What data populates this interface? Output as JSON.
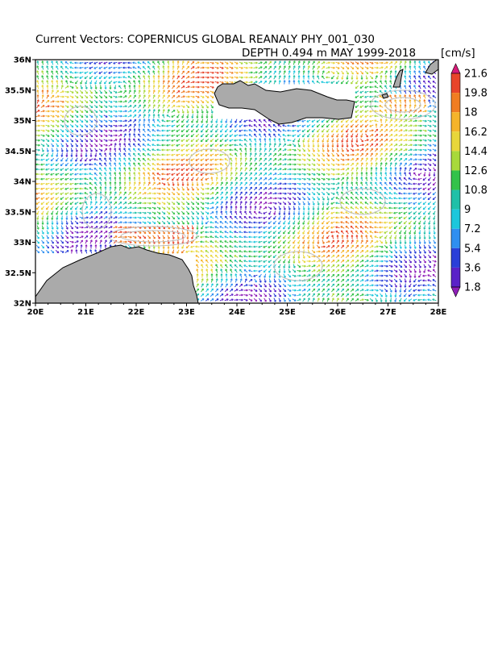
{
  "figure": {
    "title": "Current Vectors: COPERNICUS GLOBAL REANALY PHY_001_030",
    "subtitle": "DEPTH 0.494 m   MAY 1999-2018",
    "units": "[cm/s]"
  },
  "axes": {
    "x_ticks": [
      "20E",
      "21E",
      "22E",
      "23E",
      "24E",
      "25E",
      "26E",
      "27E",
      "28E"
    ],
    "y_ticks": [
      "36N",
      "35.5N",
      "35N",
      "34.5N",
      "34N",
      "33.5N",
      "33N",
      "32.5N",
      "32N"
    ]
  },
  "colorbar": {
    "labels": [
      "21.6",
      "19.8",
      "18",
      "16.2",
      "14.4",
      "12.6",
      "10.8",
      "9",
      "7.2",
      "5.4",
      "3.6",
      "1.8"
    ],
    "colors": [
      "#d81b78",
      "#e8452a",
      "#f07d22",
      "#f5b42a",
      "#e8d63a",
      "#a8d93a",
      "#33c24a",
      "#20c0a8",
      "#1cc7dc",
      "#2f8ff0",
      "#2a3fd8",
      "#5a22c8",
      "#8f1fb8"
    ]
  },
  "colors": {
    "land": "#aaaaaa",
    "coast": "#000000",
    "contour": "#bdbdbd"
  }
}
